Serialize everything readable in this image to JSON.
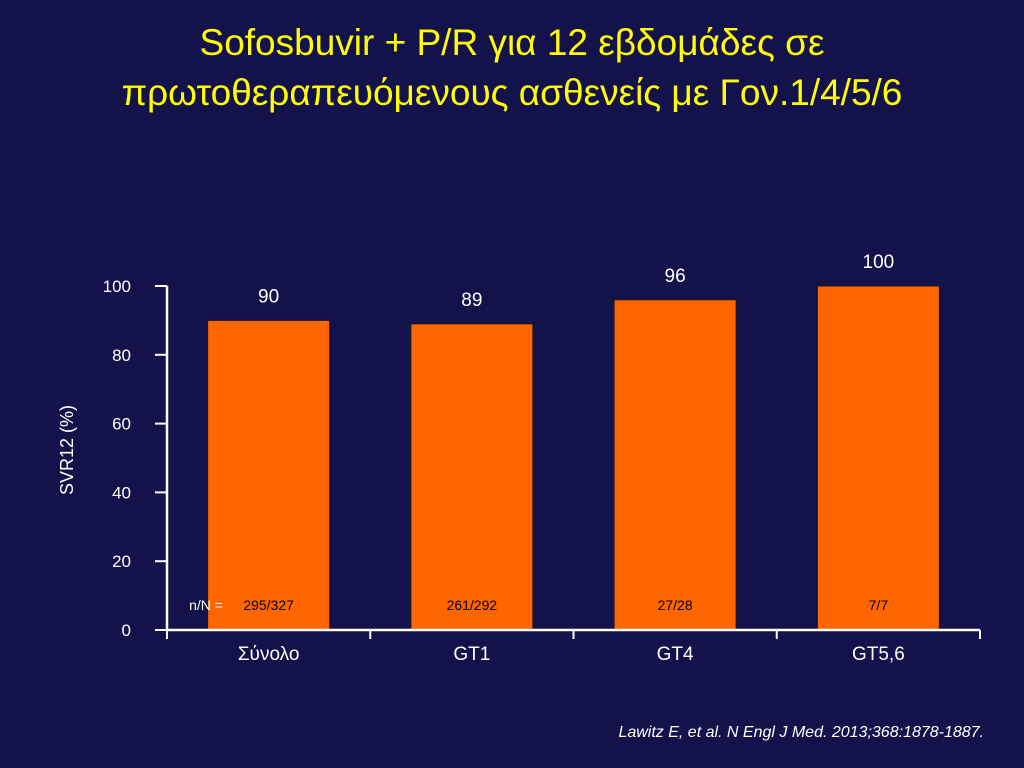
{
  "slide": {
    "title_line1": "Sofosbuvir + P/R για 12 εβδομάδες σε",
    "title_line2": "πρωτοθεραπευόμενους ασθενείς με Γον.1/4/5/6",
    "citation": "Lawitz E, et al. N Engl J Med. 2013;368:1878-1887."
  },
  "colors": {
    "background": "#14124a",
    "title": "#ffff00",
    "bar": "#ff6600",
    "text": "#ffffff",
    "nn_text": "#000000"
  },
  "chart_data": {
    "type": "bar",
    "title": "",
    "xlabel": "",
    "ylabel": "SVR12 (%)",
    "ylim": [
      0,
      100
    ],
    "yticks": [
      0,
      20,
      40,
      60,
      80,
      100
    ],
    "categories": [
      "Σύνολο",
      "GT1",
      "GT4",
      "GT5,6"
    ],
    "values": [
      90,
      89,
      96,
      100
    ],
    "data_labels": [
      "90",
      "89",
      "96",
      "100"
    ],
    "nn_prefix": "n/N =",
    "nn_labels": [
      "295/327",
      "261/292",
      "27/28",
      "7/7"
    ],
    "grid": false,
    "legend": "none"
  }
}
